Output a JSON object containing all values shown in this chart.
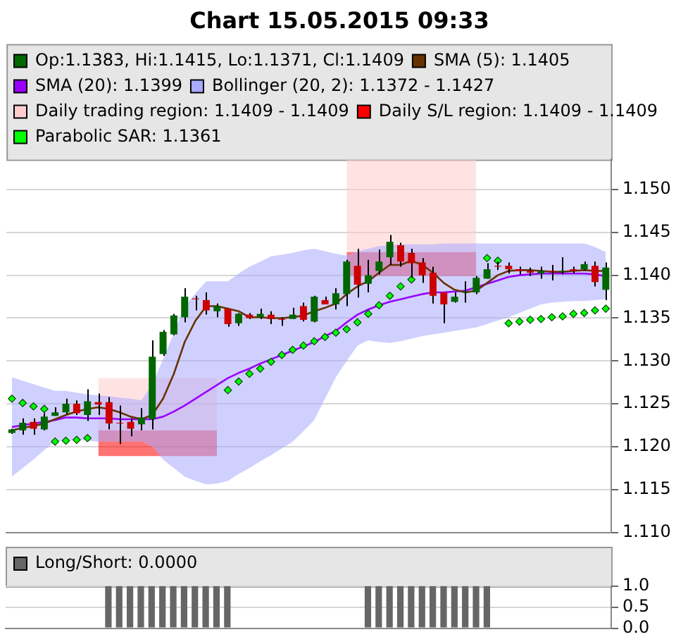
{
  "chart_data": [
    {
      "type": "candlestick",
      "title": "Chart 15.05.2015 09:33",
      "categories": [
        null,
        null,
        null,
        null,
        null,
        null,
        null,
        null,
        null,
        null,
        null,
        null,
        null,
        null,
        null,
        null,
        null,
        null,
        null,
        null,
        null,
        null,
        null,
        null,
        null,
        null,
        null,
        null,
        null,
        null,
        null,
        null,
        null,
        null,
        null,
        null,
        null,
        null,
        null,
        null,
        null,
        null,
        null,
        null,
        null,
        null,
        null,
        null,
        null,
        null,
        null,
        null,
        null,
        null,
        null,
        null
      ],
      "series": [
        {
          "type": "candlestick",
          "name": "Op:1.1383, Hi:1.1415, Lo:1.1371, Cl:1.1409",
          "color": "#006600",
          "ohlc": [
            [
              1.1216,
              1.1221,
              1.1215,
              1.122
            ],
            [
              1.1219,
              1.1233,
              1.1214,
              1.1228
            ],
            [
              1.1229,
              1.1233,
              1.1214,
              1.1221
            ],
            [
              1.122,
              1.1239,
              1.1219,
              1.1235
            ],
            [
              1.1236,
              1.1246,
              1.1236,
              1.124
            ],
            [
              1.124,
              1.1256,
              1.1238,
              1.125
            ],
            [
              1.125,
              1.1254,
              1.1237,
              1.1239
            ],
            [
              1.1237,
              1.1267,
              1.123,
              1.1253
            ],
            [
              1.1252,
              1.1262,
              1.1237,
              1.1249
            ],
            [
              1.1252,
              1.1258,
              1.122,
              1.1227
            ],
            [
              1.1228,
              1.1248,
              1.1203,
              1.1227
            ],
            [
              1.1229,
              1.1233,
              1.1212,
              1.1221
            ],
            [
              1.1226,
              1.1245,
              1.1219,
              1.1234
            ],
            [
              1.1232,
              1.1324,
              1.122,
              1.1305
            ],
            [
              1.1308,
              1.1336,
              1.1306,
              1.1334
            ],
            [
              1.1331,
              1.1355,
              1.133,
              1.1353
            ],
            [
              1.1351,
              1.1385,
              1.1345,
              1.1375
            ],
            [
              1.1373,
              1.1376,
              1.1359,
              1.1372
            ],
            [
              1.1371,
              1.138,
              1.1354,
              1.1359
            ],
            [
              1.1358,
              1.1367,
              1.1351,
              1.1364
            ],
            [
              1.1361,
              1.1361,
              1.134,
              1.1343
            ],
            [
              1.1344,
              1.1356,
              1.1341,
              1.1355
            ],
            [
              1.1354,
              1.1356,
              1.1349,
              1.135
            ],
            [
              1.1351,
              1.1361,
              1.1349,
              1.1355
            ],
            [
              1.1354,
              1.1358,
              1.1343,
              1.1349
            ],
            [
              1.1349,
              1.1351,
              1.1341,
              1.1348
            ],
            [
              1.1349,
              1.1362,
              1.1349,
              1.1354
            ],
            [
              1.1364,
              1.1368,
              1.1346,
              1.1348
            ],
            [
              1.1346,
              1.1376,
              1.1345,
              1.1375
            ],
            [
              1.1371,
              1.1375,
              1.1366,
              1.1366
            ],
            [
              1.1366,
              1.1385,
              1.136,
              1.1379
            ],
            [
              1.1378,
              1.1418,
              1.1364,
              1.1416
            ],
            [
              1.1411,
              1.1431,
              1.1374,
              1.1389
            ],
            [
              1.139,
              1.1418,
              1.138,
              1.14
            ],
            [
              1.1405,
              1.143,
              1.1401,
              1.1416
            ],
            [
              1.1421,
              1.1447,
              1.1412,
              1.1439
            ],
            [
              1.1435,
              1.1438,
              1.141,
              1.1416
            ],
            [
              1.1426,
              1.1431,
              1.1397,
              1.1414
            ],
            [
              1.1415,
              1.142,
              1.1391,
              1.14
            ],
            [
              1.1403,
              1.141,
              1.1367,
              1.1376
            ],
            [
              1.138,
              1.138,
              1.1344,
              1.1366
            ],
            [
              1.1369,
              1.138,
              1.1368,
              1.1375
            ],
            [
              1.138,
              1.1393,
              1.1368,
              1.1381
            ],
            [
              1.138,
              1.1399,
              1.1378,
              1.1397
            ],
            [
              1.1396,
              1.1414,
              1.1396,
              1.1407
            ],
            [
              1.1411,
              1.1416,
              1.1406,
              1.141
            ],
            [
              1.1411,
              1.1415,
              1.1402,
              1.1407
            ],
            [
              1.1407,
              1.141,
              1.1401,
              1.1405
            ],
            [
              1.1405,
              1.1409,
              1.1399,
              1.1403
            ],
            [
              1.1402,
              1.141,
              1.1396,
              1.1405
            ],
            [
              1.1405,
              1.1412,
              1.1394,
              1.1404
            ],
            [
              1.1404,
              1.1421,
              1.1401,
              1.1405
            ],
            [
              1.1407,
              1.141,
              1.1402,
              1.1405
            ],
            [
              1.1407,
              1.1416,
              1.1406,
              1.1413
            ],
            [
              1.1411,
              1.1416,
              1.1387,
              1.1392
            ],
            [
              1.1383,
              1.1415,
              1.1371,
              1.1409
            ]
          ],
          "colors": [
            "#006600",
            "#006600",
            "#cc0000",
            "#006600",
            "#006600",
            "#006600",
            "#cc0000",
            "#006600",
            "#cc0000",
            "#cc0000",
            "#cc0000",
            "#cc0000",
            "#006600",
            "#006600",
            "#006600",
            "#006600",
            "#006600",
            "#cc0000",
            "#cc0000",
            "#006600",
            "#cc0000",
            "#006600",
            "#cc0000",
            "#006600",
            "#cc0000",
            "#cc0000",
            "#006600",
            "#cc0000",
            "#006600",
            "#cc0000",
            "#006600",
            "#006600",
            "#cc0000",
            "#006600",
            "#006600",
            "#006600",
            "#cc0000",
            "#cc0000",
            "#cc0000",
            "#cc0000",
            "#cc0000",
            "#006600",
            "#006600",
            "#006600",
            "#006600",
            "#cc0000",
            "#cc0000",
            "#cc0000",
            "#cc0000",
            "#006600",
            "#cc0000",
            "#006600",
            "#cc0000",
            "#006600",
            "#cc0000",
            "#006600"
          ]
        },
        {
          "type": "line",
          "name": "SMA (5): 1.1405",
          "color": "#663300",
          "values": [
            1.1219,
            1.1222,
            1.1224,
            1.1227,
            1.1232,
            1.1237,
            1.1241,
            1.1244,
            1.1246,
            1.1244,
            1.124,
            1.1235,
            1.1232,
            1.1237,
            1.1256,
            1.1285,
            1.1322,
            1.1347,
            1.1364,
            1.1364,
            1.1361,
            1.1358,
            1.1351,
            1.1351,
            1.135,
            1.135,
            1.1351,
            1.1353,
            1.1358,
            1.1362,
            1.1367,
            1.1378,
            1.1387,
            1.1393,
            1.1403,
            1.1412,
            1.1412,
            1.1417,
            1.1412,
            1.1403,
            1.1391,
            1.1383,
            1.138,
            1.1382,
            1.1391,
            1.14,
            1.1405,
            1.1406,
            1.1406,
            1.1405,
            1.1404,
            1.1404,
            1.1405,
            1.1406,
            1.1405,
            1.1405
          ]
        },
        {
          "type": "line",
          "name": "SMA (20): 1.1399",
          "color": "#9900ff",
          "values": [
            1.1223,
            1.1225,
            1.1227,
            1.1229,
            1.1231,
            1.1234,
            1.1234,
            1.1233,
            1.1233,
            1.1233,
            1.1232,
            1.1232,
            1.1232,
            1.1232,
            1.1235,
            1.1241,
            1.1248,
            1.1256,
            1.1264,
            1.1272,
            1.128,
            1.1286,
            1.1291,
            1.1297,
            1.1302,
            1.1307,
            1.1312,
            1.1317,
            1.1322,
            1.1329,
            1.1335,
            1.1345,
            1.1354,
            1.136,
            1.1365,
            1.1369,
            1.1372,
            1.1375,
            1.1378,
            1.138,
            1.138,
            1.1381,
            1.1382,
            1.1386,
            1.139,
            1.1394,
            1.1398,
            1.14,
            1.1401,
            1.1402,
            1.1402,
            1.1402,
            1.1402,
            1.1402,
            1.1401,
            1.1399
          ]
        },
        {
          "type": "area",
          "name": "Bollinger (20, 2): 1.1372 - 1.1427",
          "color": "#aaaaff",
          "values": [
            null,
            null,
            null,
            null,
            null,
            null,
            null,
            null,
            null,
            null,
            null,
            null,
            null,
            null,
            null,
            null,
            null,
            null,
            null,
            null,
            null,
            null,
            null,
            null,
            null,
            null,
            null,
            null,
            null,
            null,
            null,
            null,
            null,
            null,
            null,
            null,
            null,
            null,
            null,
            null,
            null,
            null,
            null,
            null,
            null,
            null,
            null,
            null,
            null,
            null,
            null,
            null,
            null,
            null,
            null,
            null
          ],
          "upper": [
            1.1281,
            1.1277,
            1.1273,
            1.1269,
            1.1265,
            1.1265,
            1.1263,
            1.1261,
            1.126,
            1.1259,
            1.1257,
            1.1256,
            1.1254,
            1.1273,
            1.1302,
            1.1333,
            1.1364,
            1.1379,
            1.1393,
            1.1393,
            1.1393,
            1.1402,
            1.141,
            1.1416,
            1.1422,
            1.1424,
            1.1426,
            1.1429,
            1.1431,
            1.1428,
            1.1425,
            1.1423,
            1.1428,
            1.1431,
            1.1434,
            1.1435,
            1.1436,
            1.1436,
            1.1436,
            1.1436,
            1.1437,
            1.1437,
            1.1437,
            1.1437,
            1.1437,
            1.1437,
            1.1437,
            1.1437,
            1.1437,
            1.1437,
            1.1437,
            1.1437,
            1.1437,
            1.1437,
            1.1433,
            1.1427
          ],
          "lower": [
            1.1165,
            1.1175,
            1.1185,
            1.1196,
            1.1206,
            1.1207,
            1.1208,
            1.1207,
            1.1206,
            1.1206,
            1.1206,
            1.1206,
            1.1206,
            1.12,
            1.1185,
            1.1175,
            1.1165,
            1.116,
            1.1156,
            1.1157,
            1.116,
            1.1168,
            1.1175,
            1.1183,
            1.119,
            1.1198,
            1.1206,
            1.1218,
            1.1231,
            1.1256,
            1.1281,
            1.13,
            1.1318,
            1.1324,
            1.1322,
            1.1321,
            1.1323,
            1.1326,
            1.1329,
            1.1331,
            1.1333,
            1.1335,
            1.1337,
            1.1339,
            1.1343,
            1.1347,
            1.1351,
            1.1356,
            1.1361,
            1.1366,
            1.1368,
            1.1369,
            1.137,
            1.137,
            1.1371,
            1.1372
          ]
        },
        {
          "type": "area",
          "name": "Daily trading region: 1.1409 - 1.1409",
          "color": "#ffcccc",
          "lower": [
            null,
            null,
            null,
            null,
            null,
            null,
            null,
            null,
            1.1219,
            1.1219,
            1.1219,
            1.1219,
            1.1219,
            1.1219,
            1.1219,
            1.1219,
            1.1219,
            1.1219,
            1.1219,
            1.1219,
            null,
            null,
            null,
            null,
            null,
            null,
            null,
            null,
            null,
            null,
            null,
            1.1427,
            1.1427,
            1.1427,
            1.1427,
            1.1427,
            1.1427,
            1.1427,
            1.1427,
            1.1427,
            1.1427,
            1.1427,
            1.1427,
            1.1427,
            null,
            null,
            null,
            null,
            null,
            null,
            null,
            null,
            null,
            null,
            null,
            null
          ],
          "values": [
            null,
            null,
            null,
            null,
            null,
            null,
            null,
            null,
            null,
            null,
            null,
            null,
            null,
            null,
            null,
            null,
            null,
            null,
            null,
            null,
            null,
            null,
            null,
            null,
            null,
            null,
            null,
            null,
            null,
            null,
            null,
            null,
            null,
            null,
            null,
            null,
            null,
            null,
            null,
            null,
            null,
            null,
            null,
            null,
            null,
            null,
            null,
            null,
            null,
            null,
            null,
            null,
            null,
            null,
            null,
            null
          ],
          "upper": [
            null,
            null,
            null,
            null,
            null,
            null,
            null,
            null,
            1.128,
            1.128,
            1.128,
            1.128,
            1.128,
            1.128,
            1.128,
            1.128,
            1.128,
            1.128,
            1.128,
            1.128,
            null,
            null,
            null,
            null,
            null,
            null,
            null,
            null,
            null,
            null,
            null,
            1.1535,
            1.1535,
            1.1535,
            1.1535,
            1.1535,
            1.1535,
            1.1535,
            1.1535,
            1.1535,
            1.1535,
            1.1535,
            1.1535,
            1.1535,
            null,
            null,
            null,
            null,
            null,
            null,
            null,
            null,
            null,
            null,
            null,
            null
          ]
        },
        {
          "type": "area",
          "name": "Daily S/L region: 1.1409 - 1.1409",
          "color": "#ff0000",
          "lower": [
            null,
            null,
            null,
            null,
            null,
            null,
            null,
            null,
            1.1189,
            1.1189,
            1.1189,
            1.1189,
            1.1189,
            1.1189,
            1.1189,
            1.1189,
            1.1189,
            1.1189,
            1.1189,
            1.1189,
            null,
            null,
            null,
            null,
            null,
            null,
            null,
            null,
            null,
            null,
            null,
            1.1399,
            1.1399,
            1.1399,
            1.1399,
            1.1399,
            1.1399,
            1.1399,
            1.1399,
            1.1399,
            1.1399,
            1.1399,
            1.1399,
            1.1399,
            null,
            null,
            null,
            null,
            null,
            null,
            null,
            null,
            null,
            null,
            null,
            null
          ],
          "values": [
            null,
            null,
            null,
            null,
            null,
            null,
            null,
            null,
            null,
            null,
            null,
            null,
            null,
            null,
            null,
            null,
            null,
            null,
            null,
            null,
            null,
            null,
            null,
            null,
            null,
            null,
            null,
            null,
            null,
            null,
            null,
            null,
            null,
            null,
            null,
            null,
            null,
            null,
            null,
            null,
            null,
            null,
            null,
            null,
            null,
            null,
            null,
            null,
            null,
            null,
            null,
            null,
            null,
            null,
            null,
            null
          ],
          "upper": [
            null,
            null,
            null,
            null,
            null,
            null,
            null,
            null,
            1.1219,
            1.1219,
            1.1219,
            1.1219,
            1.1219,
            1.1219,
            1.1219,
            1.1219,
            1.1219,
            1.1219,
            1.1219,
            1.1219,
            null,
            null,
            null,
            null,
            null,
            null,
            null,
            null,
            null,
            null,
            null,
            1.1427,
            1.1427,
            1.1427,
            1.1427,
            1.1427,
            1.1427,
            1.1427,
            1.1427,
            1.1427,
            1.1427,
            1.1427,
            1.1427,
            1.1427,
            null,
            null,
            null,
            null,
            null,
            null,
            null,
            null,
            null,
            null,
            null,
            null
          ]
        },
        {
          "type": "scatter",
          "name": "Parabolic SAR: 1.1361",
          "color": "#00ff00",
          "marker": "diamond",
          "values": [
            1.1256,
            1.1251,
            1.1247,
            1.1244,
            1.1206,
            1.1207,
            1.1208,
            1.121,
            null,
            null,
            null,
            null,
            null,
            null,
            null,
            null,
            null,
            null,
            null,
            null,
            1.1266,
            1.1276,
            1.1285,
            1.1291,
            1.1299,
            1.1307,
            1.1313,
            1.1318,
            1.1323,
            1.1328,
            1.1333,
            1.1337,
            1.1345,
            1.1355,
            1.1365,
            1.1376,
            1.1387,
            1.1395,
            null,
            null,
            null,
            null,
            null,
            null,
            1.142,
            1.1417,
            1.1344,
            1.1346,
            1.1348,
            1.1349,
            1.1351,
            1.1352,
            1.1355,
            1.1356,
            1.1359,
            1.1361
          ]
        }
      ],
      "ylim": [
        1.11,
        1.1535
      ],
      "yticks": [
        {
          "value": 1.11,
          "label": "1.110"
        },
        1.115,
        {
          "value": 1.12,
          "label": "1.120"
        },
        1.125,
        {
          "value": 1.13,
          "label": "1.130"
        },
        1.135,
        {
          "value": 1.14,
          "label": "1.140"
        },
        1.145,
        {
          "value": 1.15,
          "label": "1.150"
        }
      ],
      "grid": "y",
      "legend": "top left",
      "tick_labels": "y"
    },
    {
      "type": "bar",
      "categories": [
        null,
        null,
        null,
        null,
        null,
        null,
        null,
        null,
        null,
        null,
        null,
        null,
        null,
        null,
        null,
        null,
        null,
        null,
        null,
        null,
        null,
        null,
        null,
        null,
        null,
        null,
        null,
        null,
        null,
        null,
        null,
        null,
        null,
        null,
        null,
        null,
        null,
        null,
        null,
        null,
        null,
        null,
        null,
        null,
        null,
        null,
        null,
        null,
        null,
        null,
        null,
        null,
        null,
        null,
        null,
        null
      ],
      "series": [
        {
          "name": "Long/Short: 0.0000",
          "color": "#666666",
          "values": [
            0,
            0,
            0,
            0,
            0,
            0,
            0,
            0,
            0,
            1,
            1,
            1,
            1,
            1,
            1,
            1,
            1,
            1,
            1,
            1,
            1,
            0,
            0,
            0,
            0,
            0,
            0,
            0,
            0,
            0,
            0,
            0,
            0,
            1,
            1,
            1,
            1,
            1,
            1,
            1,
            1,
            1,
            1,
            1,
            1,
            0,
            0,
            0,
            0,
            0,
            0,
            0,
            0,
            0,
            0,
            0
          ]
        }
      ],
      "ylim": [
        0,
        1
      ],
      "yticks": [
        {
          "value": 0,
          "label": "0.0"
        },
        0.5,
        {
          "value": 1,
          "label": "1.0"
        }
      ],
      "grid": "y",
      "legend": "top left",
      "tick_labels": "y"
    }
  ]
}
